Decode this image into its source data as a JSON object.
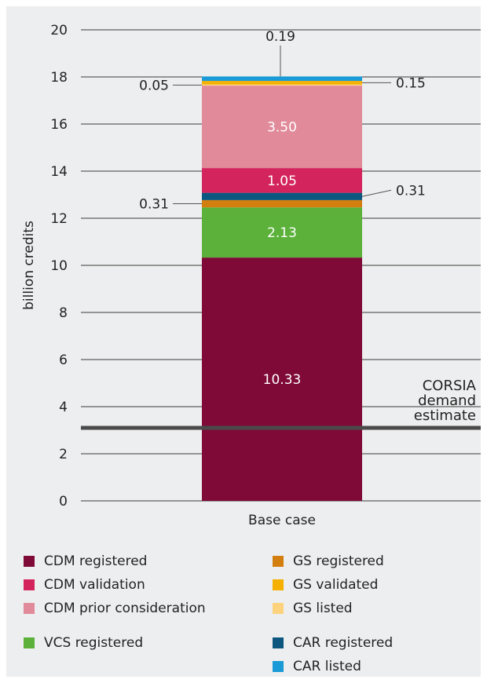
{
  "chart_data": {
    "type": "bar",
    "stacked": true,
    "categories": [
      "Base case"
    ],
    "ylabel": "billion credits",
    "ylim": [
      0,
      20
    ],
    "yticks": [
      0,
      2,
      4,
      6,
      8,
      10,
      12,
      14,
      16,
      18,
      20
    ],
    "grid": true,
    "series": [
      {
        "name": "CDM registered",
        "values": [
          10.33
        ],
        "color": "#7f0a37",
        "label": "10.33"
      },
      {
        "name": "VCS registered",
        "values": [
          2.13
        ],
        "color": "#5bb13a",
        "label": "2.13"
      },
      {
        "name": "GS registered",
        "values": [
          0.31
        ],
        "color": "#d37f10",
        "label": "0.31"
      },
      {
        "name": "CAR registered",
        "values": [
          0.31
        ],
        "color": "#0b5780",
        "label": "0.31"
      },
      {
        "name": "CDM validation",
        "values": [
          1.05
        ],
        "color": "#d4245e",
        "label": "1.05"
      },
      {
        "name": "CDM prior consideration",
        "values": [
          3.5
        ],
        "color": "#e08a9a",
        "label": "3.50"
      },
      {
        "name": "GS listed",
        "values": [
          0.05
        ],
        "color": "#fdd27d",
        "label": "0.05"
      },
      {
        "name": "GS validated",
        "values": [
          0.15
        ],
        "color": "#f5b000",
        "label": "0.15"
      },
      {
        "name": "CAR listed",
        "values": [
          0.19
        ],
        "color": "#1a9ad6",
        "label": "0.19"
      }
    ],
    "reference_line": {
      "value": 3.1,
      "label_lines": [
        "CORSIA",
        "demand",
        "estimate"
      ],
      "color": "#4a4a4a"
    },
    "legend": {
      "placement": "bottom",
      "left_column": [
        "CDM registered",
        "CDM validation",
        "CDM prior consideration",
        "VCS registered"
      ],
      "right_column": [
        "GS registered",
        "GS validated",
        "GS listed",
        "CAR registered",
        "CAR listed"
      ]
    }
  }
}
